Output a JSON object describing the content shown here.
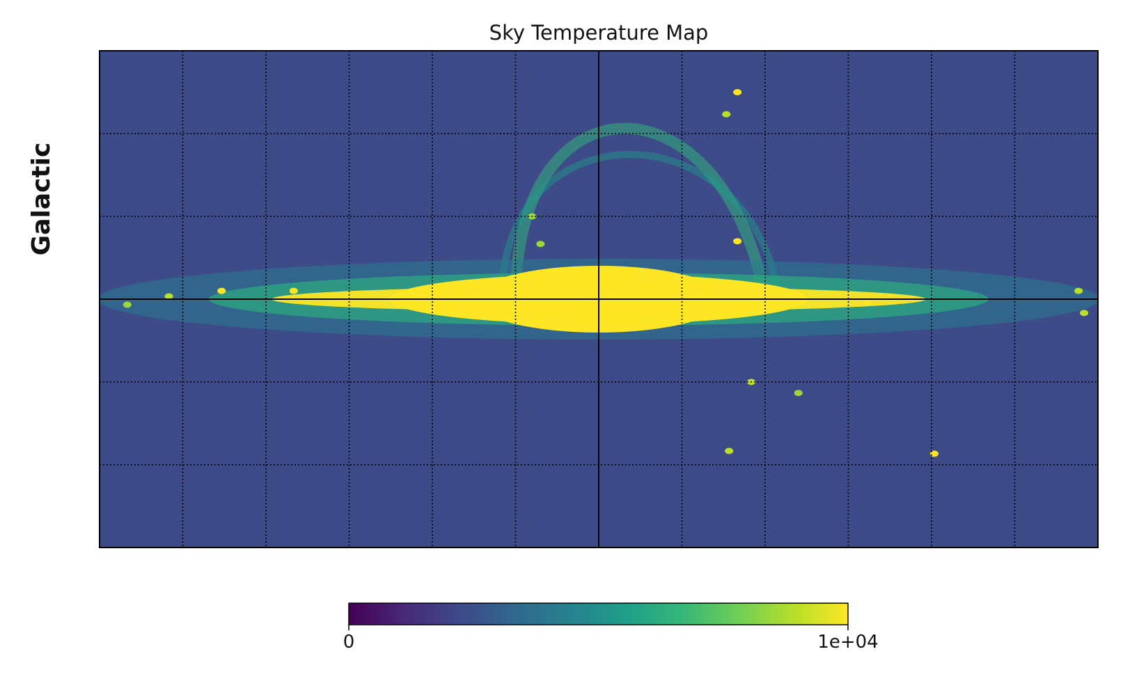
{
  "figure": {
    "title": "Sky Temperature Map",
    "coord_label": "Galactic"
  },
  "chart_data": {
    "type": "heatmap",
    "projection": "cartesian (galactic longitude / latitude)",
    "title": "Sky Temperature Map",
    "coord_system": "Galactic",
    "colormap": "viridis",
    "colormap_stops": [
      "#440154",
      "#482878",
      "#3e4989",
      "#31688e",
      "#26828e",
      "#1f9e89",
      "#35b779",
      "#6ece58",
      "#b5de2b",
      "#fde725"
    ],
    "vmin": 0,
    "vmax": 10000,
    "colorbar": {
      "orientation": "horizontal",
      "ticks": [
        0,
        10000
      ],
      "tick_labels": [
        "0",
        "1e+04"
      ]
    },
    "graticule": {
      "longitude_deg": [
        -180,
        -150,
        -120,
        -90,
        -60,
        -30,
        0,
        30,
        60,
        90,
        120,
        150,
        180
      ],
      "latitude_deg": [
        -90,
        -60,
        -30,
        0,
        30,
        60,
        90
      ],
      "equator_solid": true,
      "central_meridian_solid": true,
      "other_lines_style": "dotted"
    },
    "longitude_range_deg": [
      180,
      -180
    ],
    "latitude_range_deg": [
      -90,
      90
    ],
    "grid": true,
    "features": {
      "galactic_plane_band": {
        "latitude_center_deg": 0,
        "peak_longitude_span_deg": [
          -30,
          30
        ],
        "level": 10000
      },
      "north_polar_spur_loop": {
        "longitude_span_deg": [
          -60,
          30
        ],
        "latitude_span_deg": [
          0,
          80
        ],
        "level": 6500
      },
      "background_level": 2300,
      "point_sources": [
        {
          "l_deg": -50,
          "b_deg": 75,
          "level": 10000
        },
        {
          "l_deg": -46,
          "b_deg": 67,
          "level": 9000
        },
        {
          "l_deg": -50,
          "b_deg": 21,
          "level": 10000
        },
        {
          "l_deg": 24,
          "b_deg": 30,
          "level": 8500
        },
        {
          "l_deg": 21,
          "b_deg": 20,
          "level": 8500
        },
        {
          "l_deg": -97,
          "b_deg": -1,
          "level": 10000
        },
        {
          "l_deg": 110,
          "b_deg": 3,
          "level": 10000
        },
        {
          "l_deg": 136,
          "b_deg": 3,
          "level": 10000
        },
        {
          "l_deg": 155,
          "b_deg": 1,
          "level": 9000
        },
        {
          "l_deg": -55,
          "b_deg": -30,
          "level": 9000
        },
        {
          "l_deg": -72,
          "b_deg": -34,
          "level": 8500
        },
        {
          "l_deg": -121,
          "b_deg": -56,
          "level": 10000
        },
        {
          "l_deg": -47,
          "b_deg": -55,
          "level": 9000
        },
        {
          "l_deg": -173,
          "b_deg": 3,
          "level": 9000
        },
        {
          "l_deg": -175,
          "b_deg": -5,
          "level": 9000
        },
        {
          "l_deg": 170,
          "b_deg": -2,
          "level": 8500
        }
      ]
    }
  }
}
